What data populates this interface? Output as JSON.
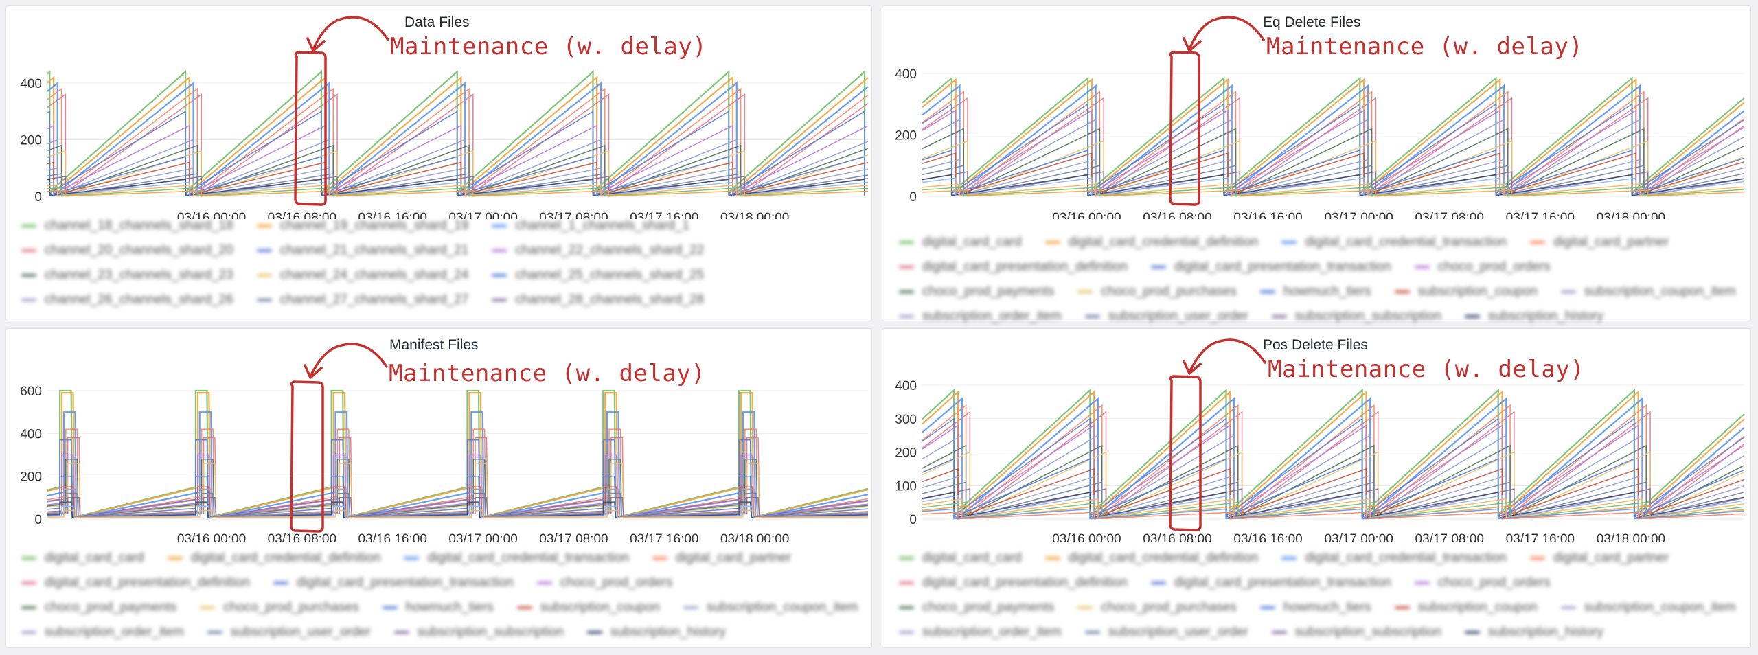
{
  "annotation_text": "Maintenance (w. delay)",
  "x_ticks": [
    "03/16 00:00",
    "03/16 08:00",
    "03/16 16:00",
    "03/17 00:00",
    "03/17 08:00",
    "03/17 16:00",
    "03/18 00:00"
  ],
  "palette": [
    "#73bf69",
    "#f2a33c",
    "#5794f2",
    "#ff7f5e",
    "#e0758a",
    "#5c78d6",
    "#b877d9",
    "#8f9ad9",
    "#52725a",
    "#e8c56a",
    "#4e79d8",
    "#c4523e",
    "#9e9ec8",
    "#6e7fa8",
    "#8a6f9c",
    "#37456c",
    "#8ab8ff",
    "#ffb357"
  ],
  "panels": [
    {
      "title": "Data Files",
      "chart_data": {
        "type": "line",
        "title": "Data Files",
        "x_ticks": [
          "03/16 00:00",
          "03/16 08:00",
          "03/16 16:00",
          "03/17 00:00",
          "03/17 08:00",
          "03/17 16:00",
          "03/18 00:00"
        ],
        "ylim": [
          0,
          450
        ],
        "y_ticks": [
          0,
          200,
          400
        ],
        "pattern": "sawtooth",
        "period_hours": 12,
        "series_peaks": [
          440,
          420,
          400,
          380,
          360,
          300,
          250,
          200,
          180,
          160,
          140,
          120,
          100,
          80,
          70,
          60,
          50,
          40,
          30,
          20
        ]
      },
      "legend": [
        [
          "channel_18_channels_shard_18",
          "channel_19_channels_shard_19",
          "channel_1_channels_shard_1"
        ],
        [
          "channel_20_channels_shard_20",
          "channel_21_channels_shard_21",
          "channel_22_channels_shard_22"
        ],
        [
          "channel_23_channels_shard_23",
          "channel_24_channels_shard_24",
          "channel_25_channels_shard_25"
        ],
        [
          "channel_26_channels_shard_26",
          "channel_27_channels_shard_27",
          "channel_28_channels_shard_28"
        ]
      ]
    },
    {
      "title": "Eq Delete Files",
      "chart_data": {
        "type": "line",
        "title": "Eq Delete Files",
        "x_ticks": [
          "03/16 00:00",
          "03/16 08:00",
          "03/16 16:00",
          "03/17 00:00",
          "03/17 08:00",
          "03/17 16:00",
          "03/18 00:00"
        ],
        "ylim": [
          0,
          420
        ],
        "y_ticks": [
          0,
          200,
          400
        ],
        "pattern": "sawtooth",
        "period_hours": 12,
        "series_peaks": [
          385,
          380,
          360,
          340,
          320,
          300,
          280,
          250,
          220,
          180,
          150,
          140,
          120,
          100,
          80,
          70,
          60,
          40,
          30,
          20
        ]
      },
      "legend": [
        [
          "digital_card_card",
          "digital_card_credential_definition",
          "digital_card_credential_transaction",
          "digital_card_partner"
        ],
        [
          "digital_card_presentation_definition",
          "digital_card_presentation_transaction",
          "choco_prod_orders"
        ],
        [
          "choco_prod_payments",
          "choco_prod_purchases",
          "howmuch_tiers",
          "subscription_coupon",
          "subscription_coupon_item"
        ],
        [
          "subscription_order_item",
          "subscription_user_order",
          "subscription_subscription",
          "subscription_history"
        ]
      ]
    },
    {
      "title": "Manifest Files",
      "chart_data": {
        "type": "line",
        "title": "Manifest Files",
        "x_ticks": [
          "03/16 00:00",
          "03/16 08:00",
          "03/16 16:00",
          "03/17 00:00",
          "03/17 08:00",
          "03/17 16:00",
          "03/18 00:00"
        ],
        "ylim": [
          0,
          650
        ],
        "y_ticks": [
          0,
          200,
          400,
          600
        ],
        "pattern": "ramp-spike",
        "period_hours": 12,
        "series_peaks": [
          600,
          590,
          500,
          420,
          380,
          370,
          300,
          290,
          280,
          260,
          200,
          150,
          140,
          120,
          100,
          80,
          60,
          40
        ]
      },
      "legend": [
        [
          "digital_card_card",
          "digital_card_credential_definition",
          "digital_card_credential_transaction",
          "digital_card_partner"
        ],
        [
          "digital_card_presentation_definition",
          "digital_card_presentation_transaction",
          "choco_prod_orders"
        ],
        [
          "choco_prod_payments",
          "choco_prod_purchases",
          "howmuch_tiers",
          "subscription_coupon",
          "subscription_coupon_item"
        ],
        [
          "subscription_order_item",
          "subscription_user_order",
          "subscription_subscription",
          "subscription_history"
        ]
      ]
    },
    {
      "title": "Pos Delete Files",
      "chart_data": {
        "type": "line",
        "title": "Pos Delete Files",
        "x_ticks": [
          "03/16 00:00",
          "03/16 08:00",
          "03/16 16:00",
          "03/17 00:00",
          "03/17 08:00",
          "03/17 16:00",
          "03/18 00:00"
        ],
        "ylim": [
          0,
          420
        ],
        "y_ticks": [
          0,
          100,
          200,
          300,
          400
        ],
        "pattern": "sawtooth",
        "period_hours": 12,
        "series_peaks": [
          385,
          380,
          360,
          340,
          320,
          300,
          280,
          250,
          220,
          200,
          180,
          150,
          130,
          110,
          90,
          80,
          70,
          60,
          50,
          40,
          30,
          20
        ]
      },
      "legend": [
        [
          "digital_card_card",
          "digital_card_credential_definition",
          "digital_card_credential_transaction",
          "digital_card_partner"
        ],
        [
          "digital_card_presentation_definition",
          "digital_card_presentation_transaction",
          "choco_prod_orders"
        ],
        [
          "choco_prod_payments",
          "choco_prod_purchases",
          "howmuch_tiers",
          "subscription_coupon",
          "subscription_coupon_item"
        ],
        [
          "subscription_order_item",
          "subscription_user_order",
          "subscription_subscription",
          "subscription_history"
        ]
      ]
    }
  ]
}
